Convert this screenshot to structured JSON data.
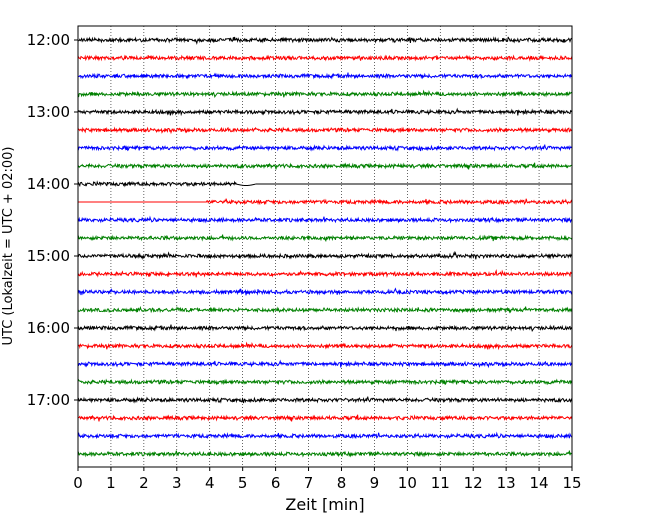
{
  "chart_data": {
    "type": "line",
    "title": "",
    "xlabel": "Zeit  [min]",
    "ylabel": "UTC (Lokalzeit = UTC + 02:00)",
    "xlim": [
      0,
      15
    ],
    "x_ticks": [
      "0",
      "1",
      "2",
      "3",
      "4",
      "5",
      "6",
      "7",
      "8",
      "9",
      "10",
      "11",
      "12",
      "13",
      "14",
      "15"
    ],
    "y_ticks": [
      "12:00",
      "13:00",
      "14:00",
      "15:00",
      "16:00",
      "17:00"
    ],
    "y_tick_rows": [
      0,
      4,
      8,
      12,
      16,
      20
    ],
    "row_interval_min": 15,
    "first_row": "12:00",
    "row_count": 24,
    "grid": {
      "vertical_dotted": true
    },
    "trace_colors": [
      "#000000",
      "#ff0000",
      "#0000ff",
      "#008000"
    ],
    "gaps": [
      {
        "row": 8,
        "data_until_min": 4.8,
        "note_shape": "offset drift after gap start"
      },
      {
        "row": 9,
        "data_from_min": 3.9
      }
    ]
  }
}
